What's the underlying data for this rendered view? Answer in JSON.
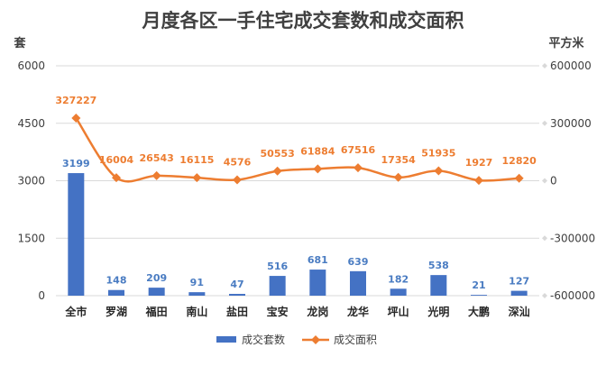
{
  "chart_data": {
    "type": "bar+line",
    "title": "月度各区一手住宅成交套数和成交面积",
    "y_left_unit": "套",
    "y_right_unit": "平方米",
    "y_left_lim": [
      0,
      6000
    ],
    "y_left_ticks": [
      0,
      1500,
      3000,
      4500,
      6000
    ],
    "y_right_lim": [
      -600000,
      600000
    ],
    "y_right_ticks": [
      -600000,
      -300000,
      0,
      300000,
      600000
    ],
    "categories": [
      "全市",
      "罗湖",
      "福田",
      "南山",
      "盐田",
      "宝安",
      "龙岗",
      "龙华",
      "坪山",
      "光明",
      "大鹏",
      "深汕"
    ],
    "series": [
      {
        "name": "成交套数",
        "type": "bar",
        "axis": "left",
        "color": "#4472c4",
        "values": [
          3199,
          148,
          209,
          91,
          47,
          516,
          681,
          639,
          182,
          538,
          21,
          127
        ]
      },
      {
        "name": "成交面积",
        "type": "line",
        "axis": "right",
        "color": "#ed7d31",
        "values": [
          327227,
          16004,
          26543,
          16115,
          4576,
          50553,
          61884,
          67516,
          17354,
          51935,
          1927,
          12820
        ]
      }
    ],
    "legend_position": "bottom",
    "grid": true
  }
}
